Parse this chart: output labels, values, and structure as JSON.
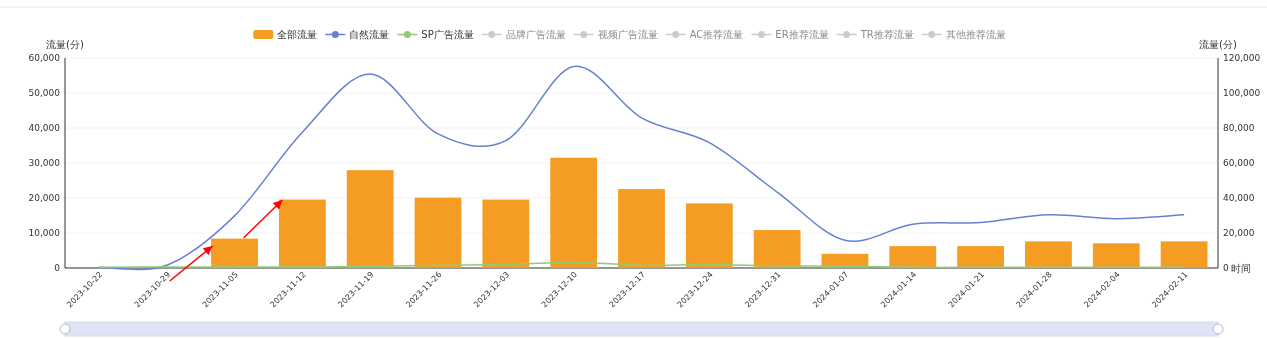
{
  "chart_data": {
    "type": "bar",
    "ylabel": "流量(分)",
    "y2label": "流量(分)",
    "xlabel": "时间",
    "categories": [
      "2023-10-22",
      "2023-10-29",
      "2023-11-05",
      "2023-11-12",
      "2023-11-19",
      "2023-11-26",
      "2023-12-03",
      "2023-12-10",
      "2023-12-17",
      "2023-12-24",
      "2023-12-31",
      "2024-01-07",
      "2024-01-14",
      "2024-01-21",
      "2024-01-28",
      "2024-02-04",
      "2024-02-11"
    ],
    "series": [
      {
        "name": "全部流量",
        "axis": "y2",
        "color": "#f59c22",
        "values": [
          0,
          0,
          16800,
          39100,
          55900,
          40200,
          39100,
          63000,
          45100,
          36900,
          21700,
          8100,
          12500,
          12500,
          15200,
          14100,
          15200
        ]
      },
      {
        "name": "自然流量",
        "type": "line",
        "color": "#6580d0",
        "values": [
          200,
          800,
          14900,
          38800,
          55400,
          38300,
          36400,
          57600,
          42900,
          35800,
          21700,
          7900,
          12500,
          13000,
          15200,
          14100,
          15200
        ]
      },
      {
        "name": "SP广告流量",
        "type": "line",
        "color": "#91cc75",
        "values": [
          200,
          300,
          300,
          300,
          400,
          800,
          1000,
          1600,
          800,
          1000,
          600,
          500,
          200,
          200,
          200,
          200,
          200
        ]
      },
      {
        "name": "品牌广告流量",
        "type": "line",
        "color": "#cccccc",
        "values": [
          null,
          null,
          null,
          null,
          null,
          null,
          null,
          null,
          null,
          null,
          null,
          null,
          null,
          null,
          null,
          null,
          null
        ]
      },
      {
        "name": "视频广告流量",
        "type": "line",
        "color": "#cccccc",
        "values": [
          null,
          null,
          null,
          null,
          null,
          null,
          null,
          null,
          null,
          null,
          null,
          null,
          null,
          null,
          null,
          null,
          null
        ]
      },
      {
        "name": "AC推荐流量",
        "type": "line",
        "color": "#cccccc",
        "values": [
          null,
          null,
          null,
          null,
          null,
          null,
          null,
          null,
          null,
          null,
          null,
          null,
          null,
          null,
          null,
          null,
          null
        ]
      },
      {
        "name": "ER推荐流量",
        "type": "line",
        "color": "#cccccc",
        "values": [
          null,
          null,
          null,
          null,
          null,
          null,
          null,
          null,
          null,
          null,
          null,
          null,
          null,
          null,
          null,
          null,
          null
        ]
      },
      {
        "name": "TR推荐流量",
        "type": "line",
        "color": "#cccccc",
        "values": [
          null,
          null,
          null,
          null,
          null,
          null,
          null,
          null,
          null,
          null,
          null,
          null,
          null,
          null,
          null,
          null,
          null
        ]
      },
      {
        "name": "其他推荐流量",
        "type": "line",
        "color": "#cccccc",
        "values": [
          null,
          null,
          null,
          null,
          null,
          null,
          null,
          null,
          null,
          null,
          null,
          null,
          null,
          null,
          null,
          null,
          null
        ]
      }
    ],
    "ylim": [
      0,
      60000
    ],
    "yticks": [
      0,
      {
        "value": 10000,
        "label": "10,000"
      },
      {
        "value": 20000,
        "label": "20,000"
      },
      {
        "value": 30000,
        "label": "30,000"
      },
      {
        "value": 40000,
        "label": "40,000"
      },
      {
        "value": 50000,
        "label": "50,000"
      },
      {
        "value": 60000,
        "label": "60,000"
      }
    ],
    "y2lim": [
      0,
      120000
    ],
    "y2ticks": [
      0,
      {
        "value": 20000,
        "label": "20,000"
      },
      {
        "value": 40000,
        "label": "40,000"
      },
      {
        "value": 60000,
        "label": "60,000"
      },
      {
        "value": 80000,
        "label": "80,000"
      },
      {
        "value": 100000,
        "label": "100,000"
      },
      {
        "value": 120000,
        "label": "120,000"
      }
    ],
    "grid": "y",
    "legend": "top",
    "marker": "none",
    "line_style": "solid"
  }
}
